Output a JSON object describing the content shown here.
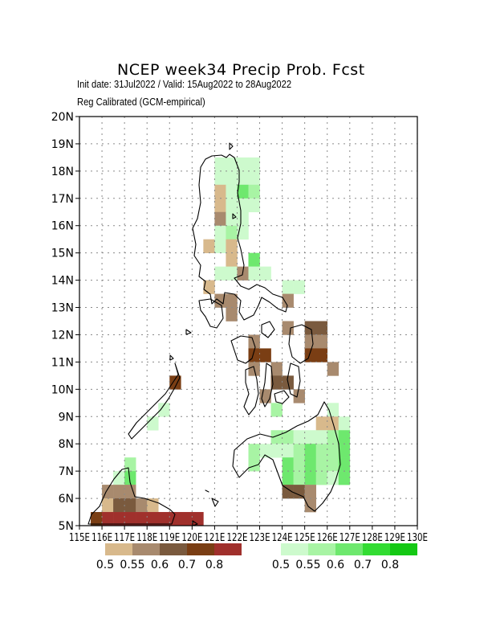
{
  "title": "NCEP  week34  Precip  Prob.  Fcst",
  "subtitle_1": "Init date: 31Jul2022 / Valid: 15Aug2022 to 28Aug2022",
  "subtitle_2": "Reg Calibrated (GCM-empirical)",
  "x_ticks": [
    "115E",
    "116E",
    "117E",
    "118E",
    "119E",
    "120E",
    "121E",
    "122E",
    "123E",
    "124E",
    "125E",
    "126E",
    "127E",
    "128E",
    "129E",
    "130E"
  ],
  "y_ticks": [
    "5N",
    "6N",
    "7N",
    "8N",
    "9N",
    "10N",
    "11N",
    "12N",
    "13N",
    "14N",
    "15N",
    "16N",
    "17N",
    "18N",
    "19N",
    "20N"
  ],
  "chart_data": {
    "type": "heatmap",
    "xlim": [
      115,
      130
    ],
    "ylim": [
      5,
      20
    ],
    "grid": true,
    "cell_size_deg": 0.5,
    "dry_colors": [
      "#d8b98c",
      "#a88a6e",
      "#7a5a3e",
      "#7a3e14",
      "#a0302c"
    ],
    "wet_colors": [
      "#cdfacd",
      "#a8f4a4",
      "#6ee86e",
      "#32dc32",
      "#14c814"
    ],
    "dry_legend_labels": [
      "0.5",
      "0.55",
      "0.6",
      "0.7",
      "0.8"
    ],
    "wet_legend_labels": [
      "0.5",
      "0.55",
      "0.6",
      "0.7",
      "0.8"
    ],
    "cells": [
      {
        "lon": 121.0,
        "lat": 18.0,
        "cat": "wet",
        "level": 0
      },
      {
        "lon": 121.5,
        "lat": 18.0,
        "cat": "wet",
        "level": 0
      },
      {
        "lon": 122.0,
        "lat": 18.0,
        "cat": "wet",
        "level": 0
      },
      {
        "lon": 122.5,
        "lat": 18.0,
        "cat": "wet",
        "level": 0
      },
      {
        "lon": 121.0,
        "lat": 17.5,
        "cat": "wet",
        "level": 0
      },
      {
        "lon": 121.5,
        "lat": 17.5,
        "cat": "wet",
        "level": 0
      },
      {
        "lon": 122.0,
        "lat": 17.5,
        "cat": "wet",
        "level": 0
      },
      {
        "lon": 122.5,
        "lat": 17.5,
        "cat": "wet",
        "level": 0
      },
      {
        "lon": 121.0,
        "lat": 17.0,
        "cat": "dry",
        "level": 0
      },
      {
        "lon": 121.5,
        "lat": 17.0,
        "cat": "wet",
        "level": 0
      },
      {
        "lon": 122.0,
        "lat": 17.0,
        "cat": "wet",
        "level": 2
      },
      {
        "lon": 122.5,
        "lat": 17.0,
        "cat": "wet",
        "level": 1
      },
      {
        "lon": 121.0,
        "lat": 16.5,
        "cat": "dry",
        "level": 0
      },
      {
        "lon": 121.5,
        "lat": 16.5,
        "cat": "wet",
        "level": 0
      },
      {
        "lon": 122.0,
        "lat": 16.5,
        "cat": "wet",
        "level": 0
      },
      {
        "lon": 122.5,
        "lat": 16.5,
        "cat": "wet",
        "level": 0
      },
      {
        "lon": 121.0,
        "lat": 16.0,
        "cat": "dry",
        "level": 1
      },
      {
        "lon": 121.5,
        "lat": 16.0,
        "cat": "wet",
        "level": 0
      },
      {
        "lon": 122.0,
        "lat": 16.0,
        "cat": "wet",
        "level": 0
      },
      {
        "lon": 121.0,
        "lat": 15.5,
        "cat": "wet",
        "level": 0
      },
      {
        "lon": 121.5,
        "lat": 15.5,
        "cat": "wet",
        "level": 1
      },
      {
        "lon": 122.0,
        "lat": 15.5,
        "cat": "wet",
        "level": 0
      },
      {
        "lon": 120.5,
        "lat": 15.0,
        "cat": "dry",
        "level": 0
      },
      {
        "lon": 121.0,
        "lat": 15.0,
        "cat": "wet",
        "level": 0
      },
      {
        "lon": 121.5,
        "lat": 15.0,
        "cat": "dry",
        "level": 0
      },
      {
        "lon": 121.5,
        "lat": 14.5,
        "cat": "dry",
        "level": 0
      },
      {
        "lon": 122.5,
        "lat": 14.5,
        "cat": "wet",
        "level": 2
      },
      {
        "lon": 121.0,
        "lat": 14.0,
        "cat": "wet",
        "level": 0
      },
      {
        "lon": 121.5,
        "lat": 14.0,
        "cat": "wet",
        "level": 0
      },
      {
        "lon": 122.0,
        "lat": 14.0,
        "cat": "dry",
        "level": 1
      },
      {
        "lon": 122.5,
        "lat": 14.0,
        "cat": "wet",
        "level": 0
      },
      {
        "lon": 123.0,
        "lat": 14.0,
        "cat": "wet",
        "level": 0
      },
      {
        "lon": 120.5,
        "lat": 13.5,
        "cat": "dry",
        "level": 0
      },
      {
        "lon": 121.0,
        "lat": 13.0,
        "cat": "dry",
        "level": 1
      },
      {
        "lon": 121.5,
        "lat": 13.0,
        "cat": "dry",
        "level": 1
      },
      {
        "lon": 121.5,
        "lat": 12.5,
        "cat": "dry",
        "level": 1
      },
      {
        "lon": 124.0,
        "lat": 13.5,
        "cat": "wet",
        "level": 0
      },
      {
        "lon": 124.5,
        "lat": 13.5,
        "cat": "wet",
        "level": 0
      },
      {
        "lon": 124.0,
        "lat": 13.0,
        "cat": "dry",
        "level": 1
      },
      {
        "lon": 125.0,
        "lat": 12.0,
        "cat": "dry",
        "level": 2
      },
      {
        "lon": 125.5,
        "lat": 12.0,
        "cat": "dry",
        "level": 2
      },
      {
        "lon": 124.0,
        "lat": 12.0,
        "cat": "dry",
        "level": 1
      },
      {
        "lon": 125.0,
        "lat": 11.5,
        "cat": "dry",
        "level": 1
      },
      {
        "lon": 125.5,
        "lat": 11.5,
        "cat": "dry",
        "level": 1
      },
      {
        "lon": 125.0,
        "lat": 11.0,
        "cat": "dry",
        "level": 3
      },
      {
        "lon": 125.5,
        "lat": 11.0,
        "cat": "dry",
        "level": 3
      },
      {
        "lon": 122.5,
        "lat": 11.5,
        "cat": "dry",
        "level": 1
      },
      {
        "lon": 122.5,
        "lat": 11.0,
        "cat": "dry",
        "level": 3
      },
      {
        "lon": 123.0,
        "lat": 11.0,
        "cat": "dry",
        "level": 3
      },
      {
        "lon": 122.5,
        "lat": 10.5,
        "cat": "dry",
        "level": 1
      },
      {
        "lon": 123.5,
        "lat": 10.5,
        "cat": "dry",
        "level": 1
      },
      {
        "lon": 123.5,
        "lat": 10.0,
        "cat": "dry",
        "level": 2
      },
      {
        "lon": 124.0,
        "lat": 10.0,
        "cat": "dry",
        "level": 2
      },
      {
        "lon": 123.0,
        "lat": 9.5,
        "cat": "dry",
        "level": 1
      },
      {
        "lon": 124.5,
        "lat": 9.5,
        "cat": "dry",
        "level": 1
      },
      {
        "lon": 126.0,
        "lat": 10.5,
        "cat": "dry",
        "level": 1
      },
      {
        "lon": 119.0,
        "lat": 10.0,
        "cat": "dry",
        "level": 3
      },
      {
        "lon": 123.5,
        "lat": 9.0,
        "cat": "wet",
        "level": 1
      },
      {
        "lon": 126.0,
        "lat": 9.0,
        "cat": "wet",
        "level": 0
      },
      {
        "lon": 125.5,
        "lat": 8.5,
        "cat": "dry",
        "level": 0
      },
      {
        "lon": 126.0,
        "lat": 8.5,
        "cat": "dry",
        "level": 0
      },
      {
        "lon": 126.5,
        "lat": 8.5,
        "cat": "wet",
        "level": 0
      },
      {
        "lon": 118.5,
        "lat": 9.0,
        "cat": "wet",
        "level": 0
      },
      {
        "lon": 118.0,
        "lat": 8.5,
        "cat": "wet",
        "level": 0
      },
      {
        "lon": 123.5,
        "lat": 8.0,
        "cat": "wet",
        "level": 1
      },
      {
        "lon": 124.0,
        "lat": 8.0,
        "cat": "wet",
        "level": 1
      },
      {
        "lon": 124.5,
        "lat": 8.0,
        "cat": "wet",
        "level": 0
      },
      {
        "lon": 125.0,
        "lat": 8.0,
        "cat": "wet",
        "level": 0
      },
      {
        "lon": 125.5,
        "lat": 8.0,
        "cat": "wet",
        "level": 0
      },
      {
        "lon": 126.0,
        "lat": 8.0,
        "cat": "wet",
        "level": 1
      },
      {
        "lon": 126.5,
        "lat": 8.0,
        "cat": "wet",
        "level": 2
      },
      {
        "lon": 123.0,
        "lat": 7.5,
        "cat": "wet",
        "level": 0
      },
      {
        "lon": 123.5,
        "lat": 7.5,
        "cat": "wet",
        "level": 0
      },
      {
        "lon": 124.0,
        "lat": 7.5,
        "cat": "wet",
        "level": 0
      },
      {
        "lon": 124.5,
        "lat": 7.5,
        "cat": "wet",
        "level": 1
      },
      {
        "lon": 125.0,
        "lat": 7.5,
        "cat": "wet",
        "level": 2
      },
      {
        "lon": 125.5,
        "lat": 7.5,
        "cat": "wet",
        "level": 1
      },
      {
        "lon": 126.0,
        "lat": 7.5,
        "cat": "wet",
        "level": 1
      },
      {
        "lon": 126.5,
        "lat": 7.5,
        "cat": "wet",
        "level": 2
      },
      {
        "lon": 122.5,
        "lat": 7.5,
        "cat": "wet",
        "level": 1
      },
      {
        "lon": 122.5,
        "lat": 7.0,
        "cat": "wet",
        "level": 1
      },
      {
        "lon": 124.0,
        "lat": 7.0,
        "cat": "wet",
        "level": 2
      },
      {
        "lon": 124.5,
        "lat": 7.0,
        "cat": "wet",
        "level": 1
      },
      {
        "lon": 125.0,
        "lat": 7.0,
        "cat": "wet",
        "level": 2
      },
      {
        "lon": 125.5,
        "lat": 7.0,
        "cat": "wet",
        "level": 1
      },
      {
        "lon": 126.0,
        "lat": 7.0,
        "cat": "wet",
        "level": 1
      },
      {
        "lon": 126.5,
        "lat": 7.0,
        "cat": "wet",
        "level": 2
      },
      {
        "lon": 124.0,
        "lat": 6.5,
        "cat": "wet",
        "level": 2
      },
      {
        "lon": 124.5,
        "lat": 6.5,
        "cat": "wet",
        "level": 1
      },
      {
        "lon": 125.0,
        "lat": 6.5,
        "cat": "wet",
        "level": 2
      },
      {
        "lon": 125.5,
        "lat": 6.5,
        "cat": "wet",
        "level": 1
      },
      {
        "lon": 126.0,
        "lat": 6.5,
        "cat": "wet",
        "level": 0
      },
      {
        "lon": 126.5,
        "lat": 6.5,
        "cat": "wet",
        "level": 2
      },
      {
        "lon": 124.0,
        "lat": 6.0,
        "cat": "dry",
        "level": 2
      },
      {
        "lon": 124.5,
        "lat": 6.0,
        "cat": "dry",
        "level": 2
      },
      {
        "lon": 125.0,
        "lat": 6.0,
        "cat": "dry",
        "level": 1
      },
      {
        "lon": 125.0,
        "lat": 5.5,
        "cat": "dry",
        "level": 1
      },
      {
        "lon": 117.0,
        "lat": 7.0,
        "cat": "wet",
        "level": 1
      },
      {
        "lon": 116.5,
        "lat": 6.5,
        "cat": "wet",
        "level": 0
      },
      {
        "lon": 117.0,
        "lat": 6.5,
        "cat": "wet",
        "level": 2
      },
      {
        "lon": 116.0,
        "lat": 6.0,
        "cat": "dry",
        "level": 1
      },
      {
        "lon": 116.5,
        "lat": 6.0,
        "cat": "dry",
        "level": 1
      },
      {
        "lon": 117.0,
        "lat": 6.0,
        "cat": "dry",
        "level": 1
      },
      {
        "lon": 116.0,
        "lat": 5.5,
        "cat": "dry",
        "level": 0
      },
      {
        "lon": 116.5,
        "lat": 5.5,
        "cat": "dry",
        "level": 2
      },
      {
        "lon": 117.0,
        "lat": 5.5,
        "cat": "dry",
        "level": 2
      },
      {
        "lon": 117.5,
        "lat": 5.5,
        "cat": "dry",
        "level": 1
      },
      {
        "lon": 118.0,
        "lat": 5.5,
        "cat": "dry",
        "level": 0
      },
      {
        "lon": 115.5,
        "lat": 5.0,
        "cat": "dry",
        "level": 3
      },
      {
        "lon": 116.0,
        "lat": 5.0,
        "cat": "dry",
        "level": 4
      },
      {
        "lon": 116.5,
        "lat": 5.0,
        "cat": "dry",
        "level": 4
      },
      {
        "lon": 117.0,
        "lat": 5.0,
        "cat": "dry",
        "level": 4
      },
      {
        "lon": 117.5,
        "lat": 5.0,
        "cat": "dry",
        "level": 4
      },
      {
        "lon": 118.0,
        "lat": 5.0,
        "cat": "dry",
        "level": 4
      },
      {
        "lon": 118.5,
        "lat": 5.0,
        "cat": "dry",
        "level": 4
      },
      {
        "lon": 119.0,
        "lat": 5.0,
        "cat": "dry",
        "level": 4
      },
      {
        "lon": 119.5,
        "lat": 5.0,
        "cat": "dry",
        "level": 4
      },
      {
        "lon": 120.0,
        "lat": 5.0,
        "cat": "dry",
        "level": 4
      }
    ]
  }
}
